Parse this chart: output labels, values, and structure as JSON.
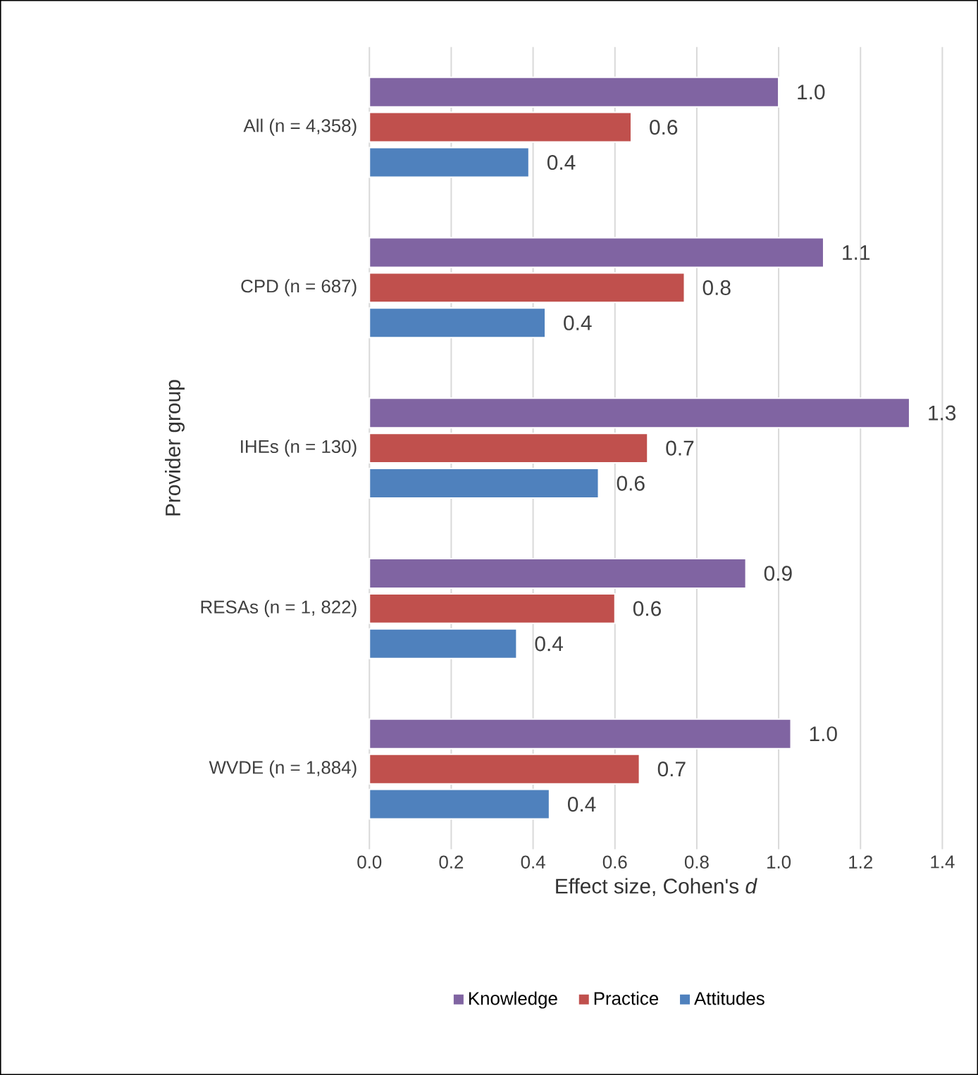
{
  "chart_data": {
    "type": "bar",
    "orientation": "horizontal",
    "ylabel": "Provider group",
    "xlabel": "Effect size, Cohen's *d*",
    "categories": [
      "All (n = 4,358)",
      "CPD (n = 687)",
      "IHEs (n = 130)",
      "RESAs (n = 1, 822)",
      "WVDE (n = 1,884)"
    ],
    "series": [
      {
        "name": "Knowledge",
        "color": "#8064a2",
        "values": [
          1.0,
          1.11,
          1.32,
          0.92,
          1.03
        ],
        "value_labels": [
          "1.0",
          "1.1",
          "1.3",
          "0.9",
          "1.0"
        ]
      },
      {
        "name": "Practice",
        "color": "#c0504d",
        "values": [
          0.64,
          0.77,
          0.68,
          0.6,
          0.66
        ],
        "value_labels": [
          "0.6",
          "0.8",
          "0.7",
          "0.6",
          "0.7"
        ]
      },
      {
        "name": "Attitudes",
        "color": "#4f81bd",
        "values": [
          0.39,
          0.43,
          0.56,
          0.36,
          0.44
        ],
        "value_labels": [
          "0.4",
          "0.4",
          "0.6",
          "0.4",
          "0.4"
        ]
      }
    ],
    "xlim": [
      0,
      1.4
    ],
    "xticks": [
      {
        "value": 0,
        "label": "0.0"
      },
      {
        "value": 0.2,
        "label": "0.2"
      },
      {
        "value": 0.4,
        "label": "0.4"
      },
      {
        "value": 0.6,
        "label": "0.6"
      },
      {
        "value": 0.8,
        "label": "0.8"
      },
      {
        "value": 1.0,
        "label": "1.0"
      },
      {
        "value": 1.2,
        "label": "1.2"
      },
      {
        "value": 1.4,
        "label": "1.4"
      }
    ],
    "grid": "x",
    "legend": "bottom"
  }
}
